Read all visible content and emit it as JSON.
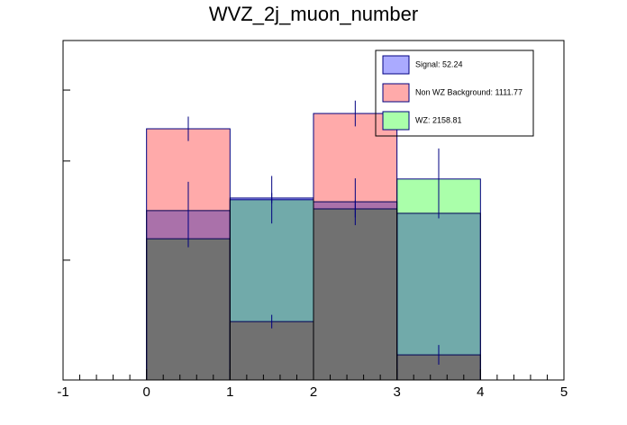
{
  "chart_data": {
    "type": "histogram",
    "title": "WVZ_2j_muon_number",
    "bins": [
      0,
      1,
      2,
      3,
      4
    ],
    "series": [
      {
        "name": "Non WZ Background: 1111.77",
        "color": "#ffaaaa",
        "values": [
          74.0,
          17.2,
          78.5,
          7.4
        ],
        "errors": [
          3.6,
          2.0,
          3.8,
          2.9
        ]
      },
      {
        "name": "WZ: 2158.81",
        "color": "#aaffaa",
        "values": [
          41.6,
          53.1,
          50.4,
          59.2
        ],
        "errors": [
          2.5,
          7.0,
          2.5,
          9.0
        ]
      },
      {
        "name": "Signal: 52.24",
        "color": "#aaaaff",
        "values": [
          49.9,
          53.6,
          52.5,
          49.1
        ],
        "errors": [
          8.5,
          1.5,
          6.9,
          1.5
        ]
      }
    ],
    "legend_order": [
      2,
      0,
      1
    ],
    "xlim": [
      -1,
      5
    ],
    "xticks": [
      -1,
      0,
      1,
      2,
      3,
      4,
      5
    ],
    "ylim": [
      0,
      100
    ],
    "yticks": [
      35.3,
      64.5,
      85.4
    ]
  }
}
